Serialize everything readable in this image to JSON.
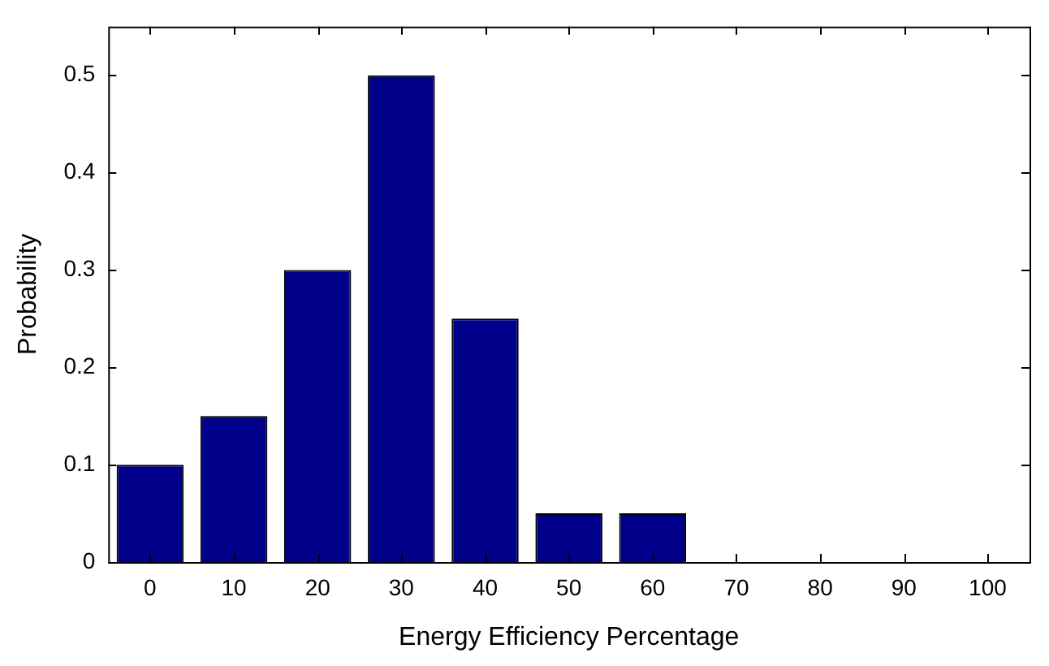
{
  "chart_data": {
    "type": "bar",
    "xlabel": "Energy Efficiency Percentage",
    "ylabel": "Probability",
    "categories": [
      "0",
      "10",
      "20",
      "30",
      "40",
      "50",
      "60",
      "70",
      "80",
      "90",
      "100"
    ],
    "values": [
      0.1,
      0.15,
      0.3,
      0.5,
      0.25,
      0.05,
      0.05,
      0,
      0,
      0,
      0
    ],
    "color": "#00008b",
    "ylim": [
      0,
      0.55
    ],
    "yticks": [
      0,
      0.1,
      0.2,
      0.3,
      0.4,
      0.5
    ],
    "grid": false,
    "legend": false
  }
}
